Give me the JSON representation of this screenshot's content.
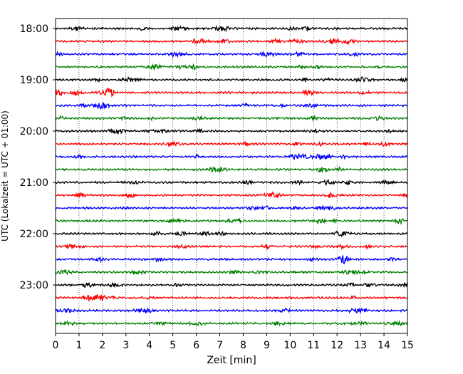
{
  "chart_data": {
    "type": "line",
    "title": "",
    "xlabel": "Zeit  [min]",
    "ylabel": "UTC (Lokalzeit = UTC + 01:00)",
    "xlim": [
      0,
      15
    ],
    "x_ticks": [
      0,
      1,
      2,
      3,
      4,
      5,
      6,
      7,
      8,
      9,
      10,
      11,
      12,
      13,
      14,
      15
    ],
    "y_ticks": [
      "18:00",
      "19:00",
      "20:00",
      "21:00",
      "22:00",
      "23:00"
    ],
    "grid": "vertical dotted lines at each minute",
    "trace_colors": [
      "#000000",
      "#ff0000",
      "#0000ff",
      "#008000"
    ],
    "series": [
      {
        "start": "18:00",
        "color": "#000000"
      },
      {
        "start": "18:15",
        "color": "#ff0000"
      },
      {
        "start": "18:30",
        "color": "#0000ff"
      },
      {
        "start": "18:45",
        "color": "#008000"
      },
      {
        "start": "19:00",
        "color": "#000000"
      },
      {
        "start": "19:15",
        "color": "#ff0000"
      },
      {
        "start": "19:30",
        "color": "#0000ff"
      },
      {
        "start": "19:45",
        "color": "#008000"
      },
      {
        "start": "20:00",
        "color": "#000000"
      },
      {
        "start": "20:15",
        "color": "#ff0000"
      },
      {
        "start": "20:30",
        "color": "#0000ff"
      },
      {
        "start": "20:45",
        "color": "#008000"
      },
      {
        "start": "21:00",
        "color": "#000000"
      },
      {
        "start": "21:15",
        "color": "#ff0000"
      },
      {
        "start": "21:30",
        "color": "#0000ff"
      },
      {
        "start": "21:45",
        "color": "#008000"
      },
      {
        "start": "22:00",
        "color": "#000000"
      },
      {
        "start": "22:15",
        "color": "#ff0000"
      },
      {
        "start": "22:30",
        "color": "#0000ff"
      },
      {
        "start": "22:45",
        "color": "#008000"
      },
      {
        "start": "23:00",
        "color": "#000000"
      },
      {
        "start": "23:15",
        "color": "#ff0000"
      },
      {
        "start": "23:30",
        "color": "#0000ff"
      },
      {
        "start": "23:45",
        "color": "#008000"
      }
    ]
  }
}
